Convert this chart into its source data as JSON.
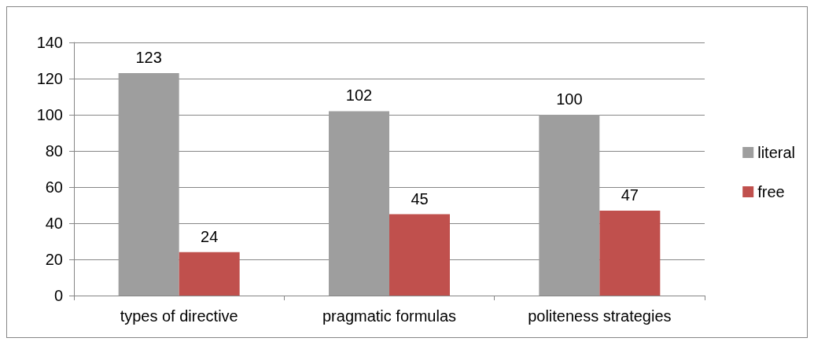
{
  "chart_data": {
    "type": "bar",
    "categories": [
      "types of directive",
      "pragmatic formulas",
      "politeness strategies"
    ],
    "series": [
      {
        "name": "literal",
        "color": "#9e9e9e",
        "values": [
          123,
          102,
          100
        ]
      },
      {
        "name": "free",
        "color": "#c0504d",
        "values": [
          24,
          45,
          47
        ]
      }
    ],
    "ylim": [
      0,
      140
    ],
    "yticks": [
      0,
      20,
      40,
      60,
      80,
      100,
      120,
      140
    ],
    "grid": "y",
    "legend": "right",
    "data_labels": true
  }
}
